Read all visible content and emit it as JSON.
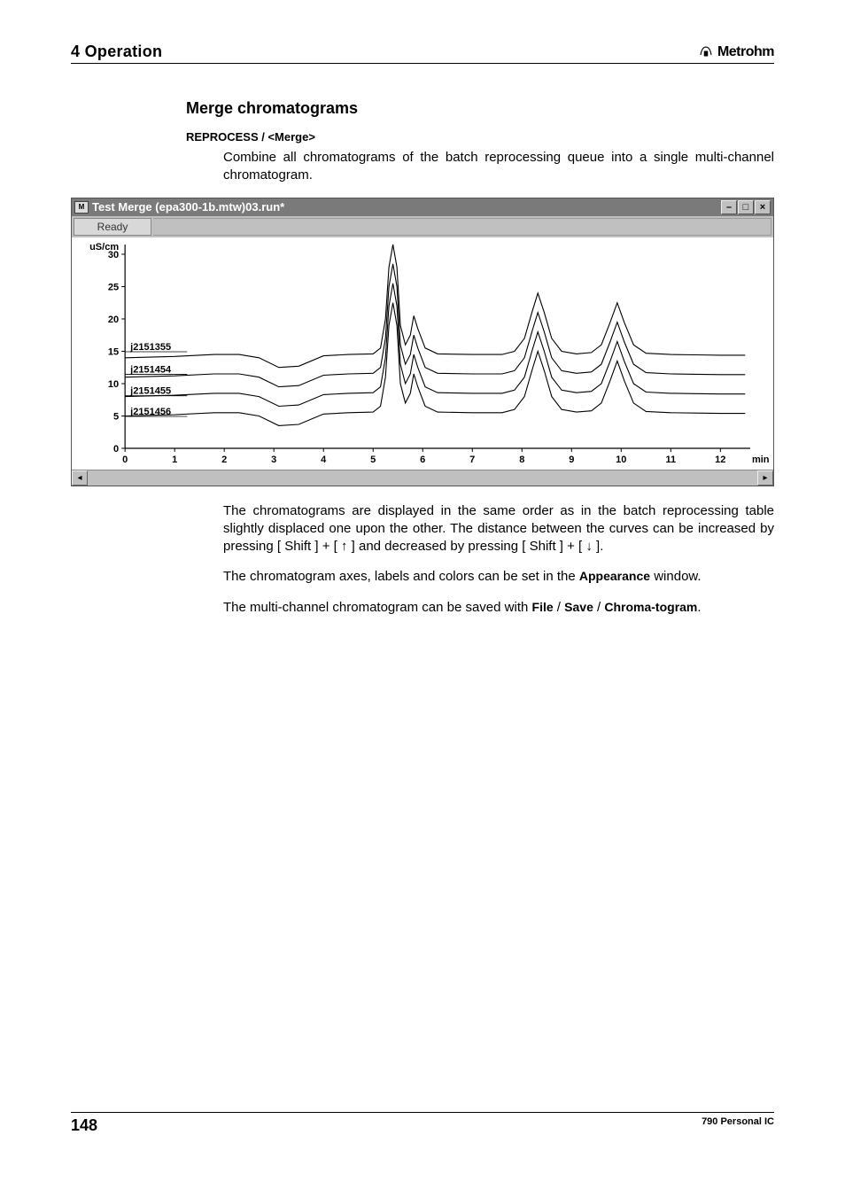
{
  "header": {
    "chapter": "4 Operation",
    "brand": "Metrohm"
  },
  "section": {
    "title": "Merge chromatograms",
    "subhead": "REPROCESS / <Merge>",
    "intro": "Combine all chromatograms of the batch reprocessing queue into a single multi-channel chromatogram."
  },
  "window": {
    "title": "Test Merge (epa300-1b.mtw)03.run*",
    "status": "Ready",
    "icon_text": "M"
  },
  "chart": {
    "type": "line",
    "y_unit": "uS/cm",
    "x_unit": "min",
    "ylim": [
      0,
      30
    ],
    "xlim": [
      0,
      12.6
    ],
    "yticks": [
      0,
      5,
      10,
      15,
      20,
      25,
      30
    ],
    "xticks": [
      0,
      1,
      2,
      3,
      4,
      5,
      6,
      7,
      8,
      9,
      10,
      11,
      12
    ],
    "line_color": "#000000",
    "bg_color": "#ffffff",
    "axis_color": "#000000",
    "series_labels": [
      "j2151355",
      "j2151454",
      "j2151455",
      "j2151456"
    ],
    "label_y_positions": [
      15.2,
      11.7,
      8.4,
      5.2
    ],
    "series_offsets": [
      12,
      9,
      6,
      3
    ],
    "base_curve": [
      [
        0.0,
        2.0
      ],
      [
        1.0,
        2.2
      ],
      [
        1.8,
        2.5
      ],
      [
        2.3,
        2.5
      ],
      [
        2.7,
        2.0
      ],
      [
        3.1,
        0.5
      ],
      [
        3.5,
        0.7
      ],
      [
        4.0,
        2.3
      ],
      [
        4.5,
        2.5
      ],
      [
        5.0,
        2.6
      ],
      [
        5.15,
        3.5
      ],
      [
        5.25,
        8.0
      ],
      [
        5.32,
        16.0
      ],
      [
        5.4,
        19.5
      ],
      [
        5.48,
        16.0
      ],
      [
        5.55,
        7.0
      ],
      [
        5.65,
        4.0
      ],
      [
        5.75,
        5.5
      ],
      [
        5.82,
        8.5
      ],
      [
        5.9,
        6.5
      ],
      [
        6.05,
        3.5
      ],
      [
        6.3,
        2.6
      ],
      [
        7.0,
        2.5
      ],
      [
        7.6,
        2.5
      ],
      [
        7.85,
        3.0
      ],
      [
        8.05,
        5.0
      ],
      [
        8.2,
        9.0
      ],
      [
        8.32,
        12.0
      ],
      [
        8.45,
        9.0
      ],
      [
        8.6,
        5.0
      ],
      [
        8.8,
        3.0
      ],
      [
        9.1,
        2.6
      ],
      [
        9.4,
        2.8
      ],
      [
        9.6,
        4.0
      ],
      [
        9.78,
        7.5
      ],
      [
        9.92,
        10.5
      ],
      [
        10.06,
        7.5
      ],
      [
        10.25,
        4.0
      ],
      [
        10.5,
        2.7
      ],
      [
        11.0,
        2.5
      ],
      [
        11.5,
        2.45
      ],
      [
        12.0,
        2.4
      ],
      [
        12.5,
        2.4
      ]
    ]
  },
  "paragraphs": {
    "p1_a": "The chromatograms are displayed in the same order as in the batch reprocessing table slightly displaced one upon the other. The distance between the curves can be increased by pressing [ Shift ] + [ ",
    "p1_b": " ] and decreased by pressing [ Shift ] + [ ",
    "p1_c": " ].",
    "arrow_up": "↑",
    "arrow_down": "↓",
    "p2_a": "The chromatogram axes, labels and colors can be set in the ",
    "p2_b": "Appearance",
    "p2_c": " window.",
    "p3_a": "The multi-channel chromatogram can be saved with ",
    "p3_b": "File",
    "p3_c": " / ",
    "p3_d": "Save",
    "p3_e": " / ",
    "p3_f": "Chroma-togram",
    "p3_g": "."
  },
  "footer": {
    "page": "148",
    "right": "790 Personal IC"
  }
}
